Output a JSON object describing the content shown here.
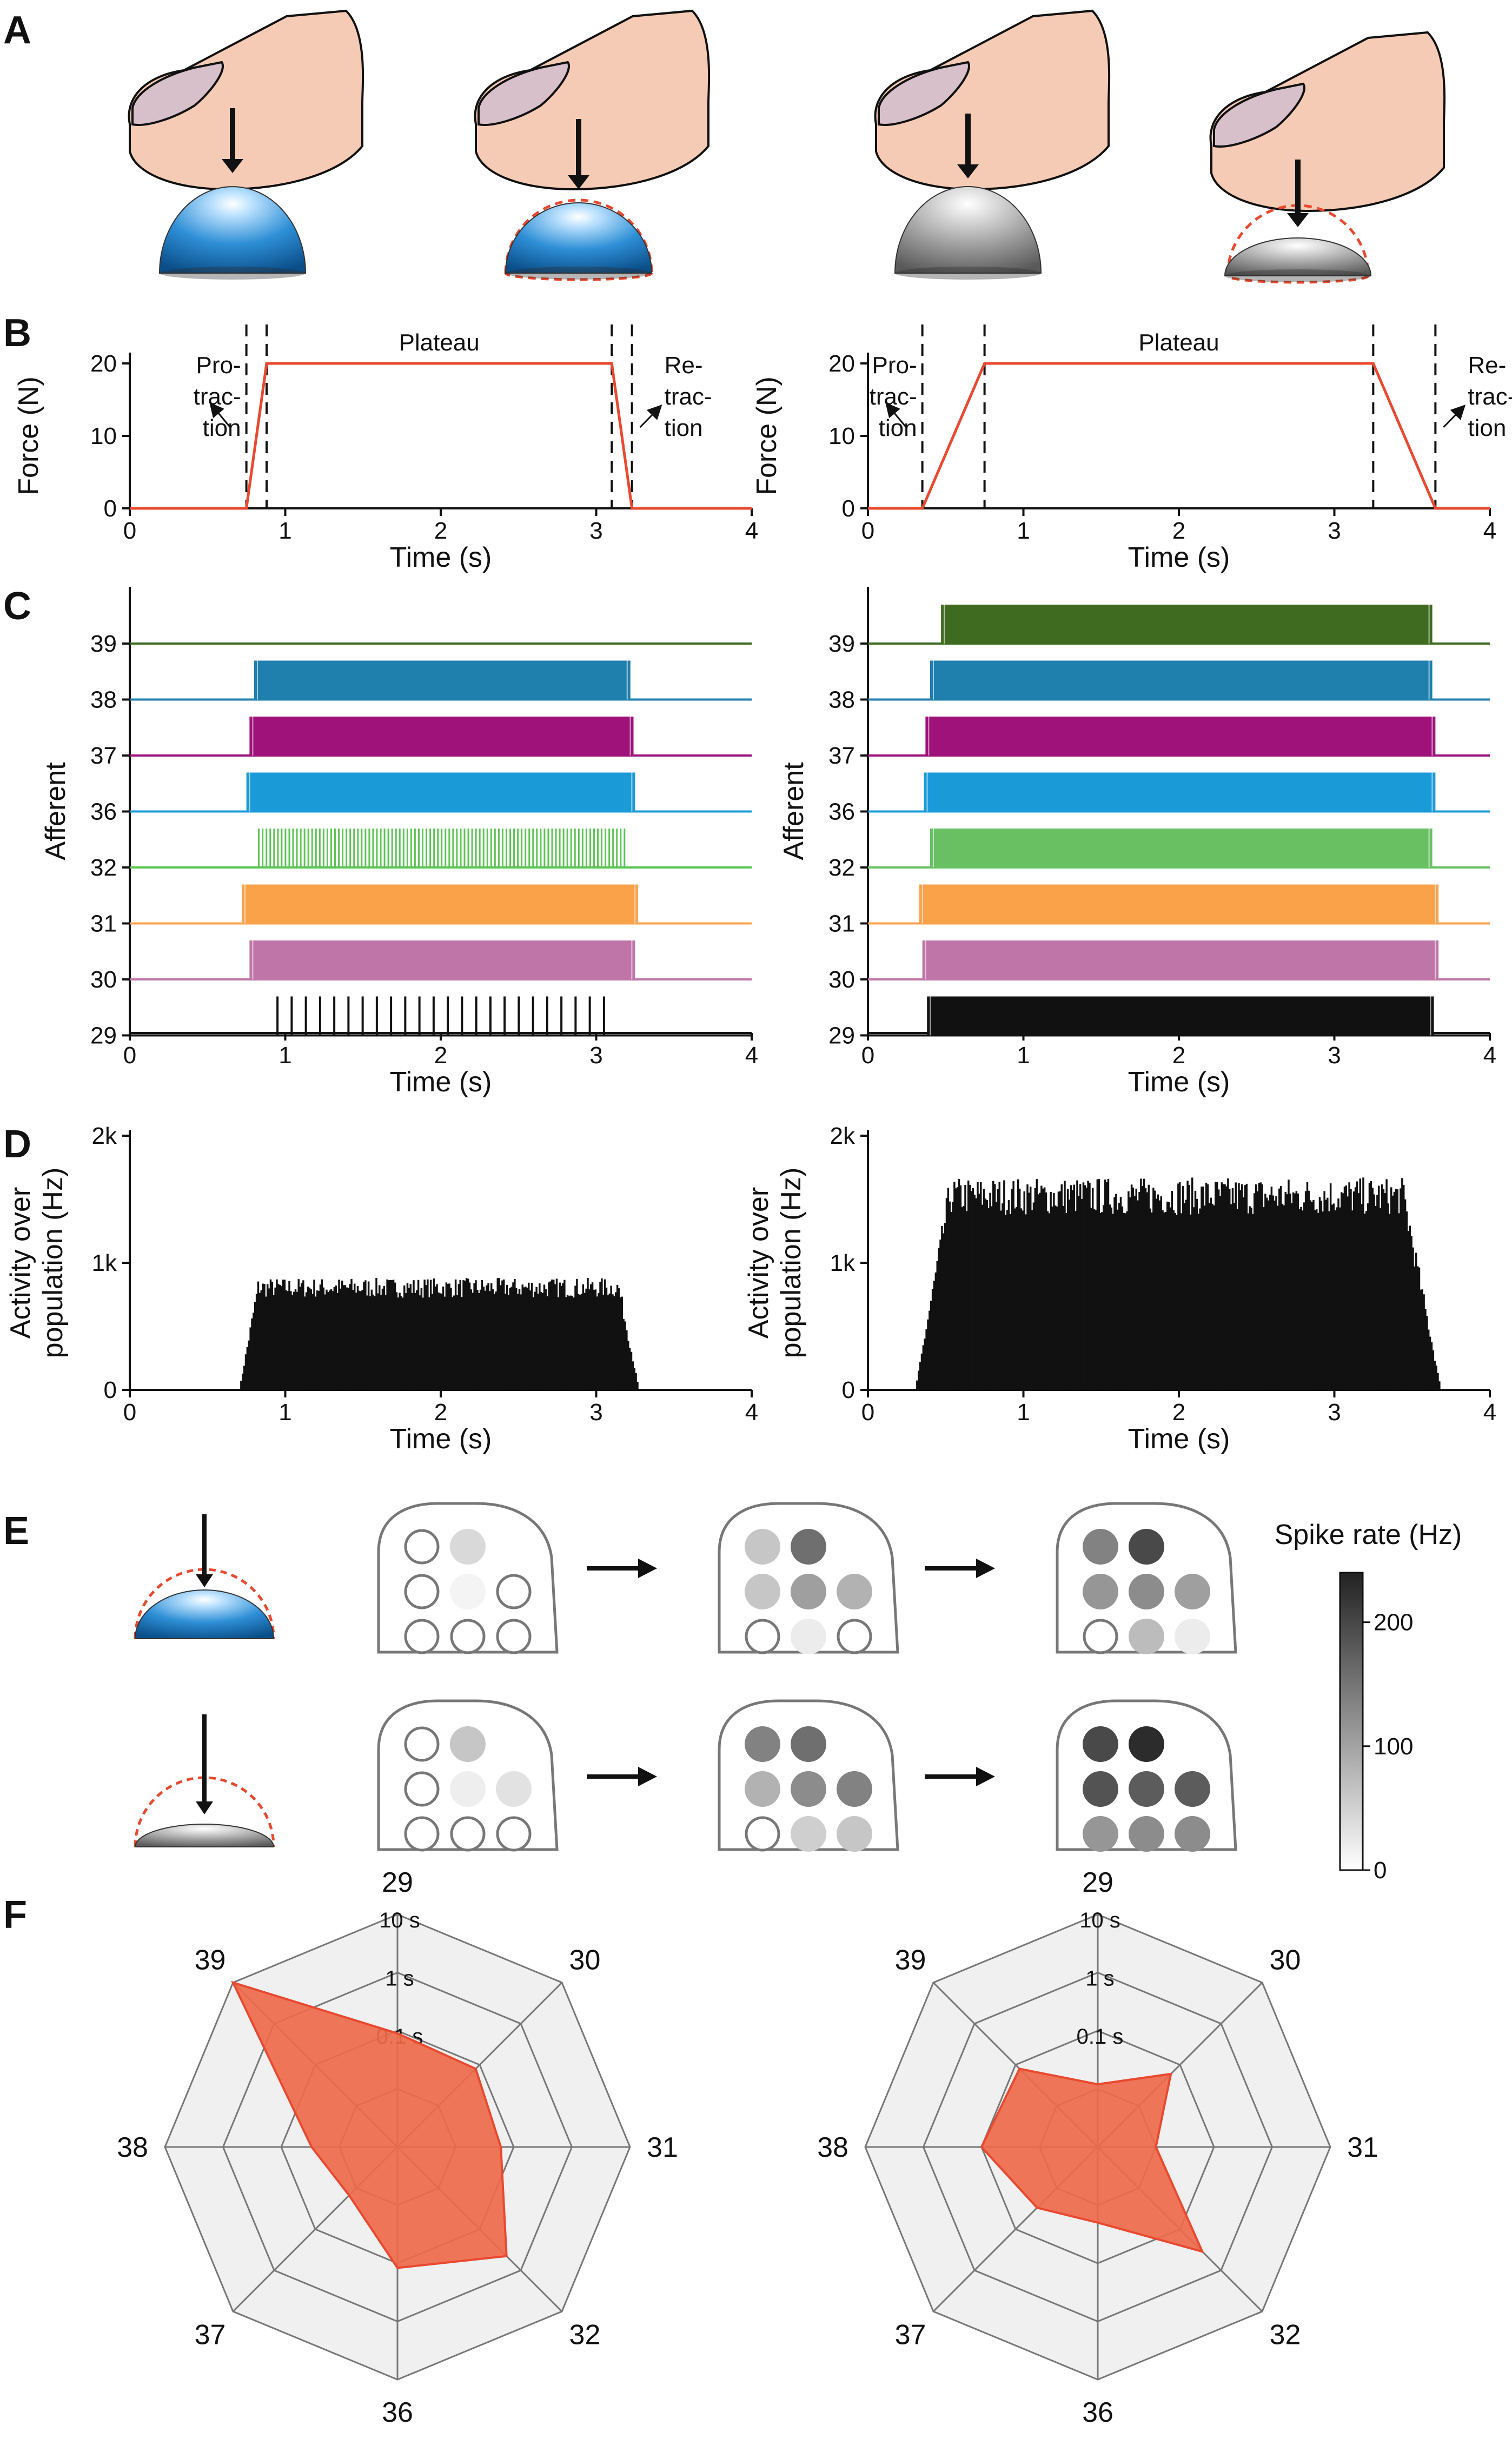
{
  "panels": {
    "a": {
      "letter": "A"
    },
    "b": {
      "letter": "B"
    },
    "c": {
      "letter": "C"
    },
    "d": {
      "letter": "D"
    },
    "e": {
      "letter": "E"
    },
    "f": {
      "letter": "F"
    }
  },
  "colors": {
    "force_line": "#e8492f",
    "soft_object": "#2e8fd6",
    "hard_object": "#9a9a9a",
    "finger": "#f6cbb5",
    "nail": "#d7c0c9"
  },
  "panel_b": {
    "plateau_label": "Plateau",
    "protraction_label": [
      "Pro-",
      "trac-",
      "tion"
    ],
    "retraction_label": [
      "Re-",
      "trac-",
      "tion"
    ]
  },
  "chart_data": [
    {
      "id": "B-left",
      "type": "line",
      "xlabel": "Time (s)",
      "ylabel": "Force (N)",
      "xlim": [
        0,
        4
      ],
      "ylim": [
        0,
        20
      ],
      "xticks": [
        0,
        1,
        2,
        3,
        4
      ],
      "yticks": [
        0,
        10,
        20
      ],
      "series": [
        {
          "x": [
            0,
            0.75,
            0.88,
            3.1,
            3.23,
            4
          ],
          "y": [
            0,
            0,
            20,
            20,
            0,
            0
          ]
        }
      ],
      "dashed_lines_x": [
        0.75,
        0.88,
        3.1,
        3.23
      ],
      "annotations": [
        "Plateau",
        "Pro-trac-tion",
        "Re-trac-tion"
      ]
    },
    {
      "id": "B-right",
      "type": "line",
      "xlabel": "Time (s)",
      "ylabel": "Force (N)",
      "xlim": [
        0,
        4
      ],
      "ylim": [
        0,
        20
      ],
      "xticks": [
        0,
        1,
        2,
        3,
        4
      ],
      "yticks": [
        0,
        10,
        20
      ],
      "series": [
        {
          "x": [
            0,
            0.35,
            0.75,
            3.25,
            3.65,
            4
          ],
          "y": [
            0,
            0,
            20,
            20,
            0,
            0
          ]
        }
      ],
      "dashed_lines_x": [
        0.35,
        0.75,
        3.25,
        3.65
      ],
      "annotations": [
        "Plateau",
        "Pro-trac-tion",
        "Re-trac-tion"
      ]
    },
    {
      "id": "C-left",
      "type": "raster",
      "xlabel": "Time (s)",
      "ylabel": "Afferent",
      "xlim": [
        0,
        4
      ],
      "xticks": [
        0,
        1,
        2,
        3,
        4
      ],
      "afferents": [
        {
          "name": "39",
          "color": "#3e6b1f",
          "start": null,
          "end": null,
          "style": "none"
        },
        {
          "name": "38",
          "color": "#1f7fad",
          "start": 0.8,
          "end": 3.22,
          "style": "dense"
        },
        {
          "name": "37",
          "color": "#9e127a",
          "start": 0.77,
          "end": 3.24,
          "style": "dense"
        },
        {
          "name": "36",
          "color": "#1a9bd8",
          "start": 0.75,
          "end": 3.25,
          "style": "dense"
        },
        {
          "name": "32",
          "color": "#5bc453",
          "start": 0.83,
          "end": 3.2,
          "style": "sparse"
        },
        {
          "name": "31",
          "color": "#f9a24a",
          "start": 0.72,
          "end": 3.27,
          "style": "dense"
        },
        {
          "name": "30",
          "color": "#c075a8",
          "start": 0.77,
          "end": 3.25,
          "style": "dense"
        },
        {
          "name": "29",
          "color": "#111111",
          "start": 0.95,
          "end": 3.05,
          "style": "ticks",
          "spike_count": 24
        }
      ]
    },
    {
      "id": "C-right",
      "type": "raster",
      "xlabel": "Time (s)",
      "ylabel": "Afferent",
      "xlim": [
        0,
        4
      ],
      "xticks": [
        0,
        1,
        2,
        3,
        4
      ],
      "afferents": [
        {
          "name": "39",
          "color": "#3e6b1f",
          "start": 0.47,
          "end": 3.63,
          "style": "dense"
        },
        {
          "name": "38",
          "color": "#1f7fad",
          "start": 0.4,
          "end": 3.63,
          "style": "dense"
        },
        {
          "name": "37",
          "color": "#9e127a",
          "start": 0.37,
          "end": 3.65,
          "style": "dense"
        },
        {
          "name": "36",
          "color": "#1a9bd8",
          "start": 0.36,
          "end": 3.65,
          "style": "dense"
        },
        {
          "name": "32",
          "color": "#69c063",
          "start": 0.4,
          "end": 3.63,
          "style": "dense"
        },
        {
          "name": "31",
          "color": "#f9a24a",
          "start": 0.33,
          "end": 3.67,
          "style": "dense"
        },
        {
          "name": "30",
          "color": "#c075a8",
          "start": 0.35,
          "end": 3.67,
          "style": "dense"
        },
        {
          "name": "29",
          "color": "#111111",
          "start": 0.38,
          "end": 3.64,
          "style": "dense"
        }
      ]
    },
    {
      "id": "D-left",
      "type": "bar",
      "xlabel": "Time (s)",
      "ylabel": "Activity over population (Hz)",
      "xlim": [
        0,
        4
      ],
      "ylim": [
        0,
        2000
      ],
      "xticks": [
        0,
        1,
        2,
        3,
        4
      ],
      "yticks": [
        "0",
        "1k",
        "2k"
      ],
      "onset": 0.7,
      "offset": 3.27,
      "plateau": 780,
      "bin_width": 0.01
    },
    {
      "id": "D-right",
      "type": "bar",
      "xlabel": "Time (s)",
      "ylabel": "Activity over population (Hz)",
      "xlim": [
        0,
        4
      ],
      "ylim": [
        0,
        2000
      ],
      "xticks": [
        0,
        1,
        2,
        3,
        4
      ],
      "yticks": [
        "0",
        "1k",
        "2k"
      ],
      "onset": 0.3,
      "offset": 3.68,
      "plateau": 1480,
      "bin_width": 0.01
    },
    {
      "id": "E-colorbar",
      "type": "heatmap",
      "title": "Spike rate (Hz)",
      "range": [
        0,
        240
      ],
      "ticks": [
        0,
        100,
        200
      ]
    },
    {
      "id": "E-grids",
      "type": "heatmap",
      "rows": [
        {
          "stage": 0,
          "cells": [
            0,
            40,
            0,
            12,
            0,
            0,
            0,
            0
          ],
          "note": "soft, protraction"
        },
        {
          "stage": 1,
          "cells": [
            60,
            150,
            60,
            100,
            80,
            0,
            20,
            0
          ],
          "note": "soft, plateau"
        },
        {
          "stage": 2,
          "cells": [
            130,
            190,
            110,
            120,
            100,
            0,
            70,
            20
          ],
          "note": "soft, retraction"
        },
        {
          "stage": 0,
          "cells": [
            0,
            60,
            0,
            18,
            30,
            0,
            0,
            0
          ],
          "note": "hard, protraction"
        },
        {
          "stage": 1,
          "cells": [
            130,
            150,
            80,
            120,
            130,
            0,
            50,
            60
          ],
          "note": "hard, plateau"
        },
        {
          "stage": 2,
          "cells": [
            190,
            220,
            180,
            170,
            170,
            110,
            120,
            120
          ],
          "note": "hard, retraction"
        }
      ],
      "slot_order": [
        "r1c1",
        "r1c2",
        "r2c1",
        "r2c2",
        "r2c3",
        "r3c1",
        "r3c2",
        "r3c3"
      ]
    },
    {
      "id": "F-left",
      "type": "radar",
      "axes": [
        "29",
        "30",
        "31",
        "32",
        "36",
        "37",
        "38",
        "39"
      ],
      "scale": "log",
      "ring_labels": [
        "0.1 s",
        "1 s",
        "10 s"
      ],
      "values": [
        0.09,
        0.08,
        0.06,
        0.45,
        0.12,
        0.015,
        0.03,
        10
      ]
    },
    {
      "id": "F-right",
      "type": "radar",
      "axes": [
        "29",
        "30",
        "31",
        "32",
        "36",
        "37",
        "38",
        "39"
      ],
      "scale": "log",
      "ring_labels": [
        "0.1 s",
        "1 s",
        "10 s"
      ],
      "values": [
        0.012,
        0.06,
        0.01,
        0.35,
        0.02,
        0.03,
        0.1,
        0.08
      ]
    }
  ]
}
